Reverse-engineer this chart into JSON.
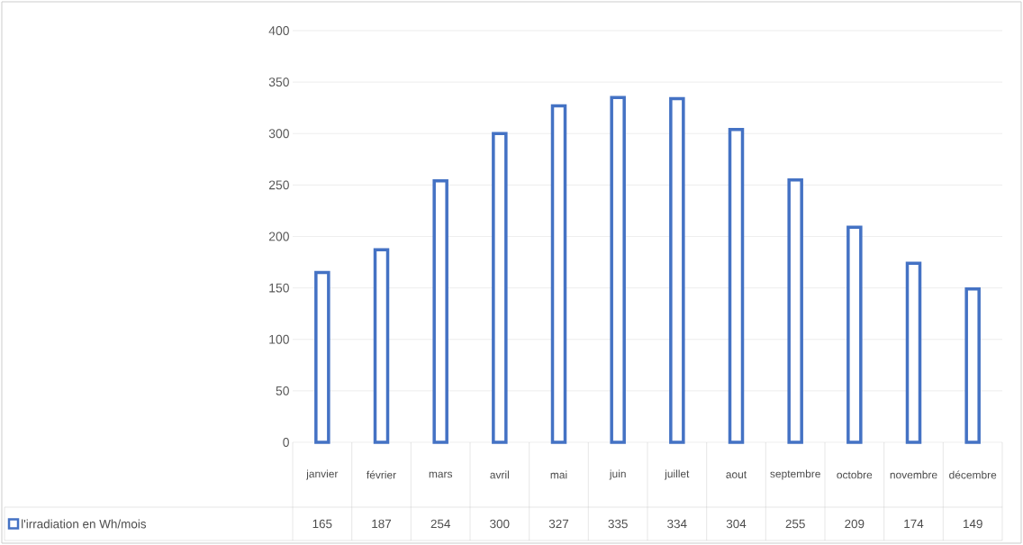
{
  "chart_data": {
    "type": "bar",
    "categories": [
      "janvier",
      "février",
      "mars",
      "avril",
      "mai",
      "juin",
      "juillet",
      "aout",
      "septembre",
      "octobre",
      "novembre",
      "décembre"
    ],
    "series": [
      {
        "name": "l'irradiation en Wh/mois",
        "color": "#4472c4",
        "values": [
          165,
          187,
          254,
          300,
          327,
          335,
          334,
          304,
          255,
          209,
          174,
          149
        ]
      }
    ],
    "ylim": [
      0,
      400
    ],
    "yticks": [
      0,
      50,
      100,
      150,
      200,
      250,
      300,
      350,
      400
    ],
    "grid": "y",
    "data_labels": true,
    "legend": "bottom"
  }
}
